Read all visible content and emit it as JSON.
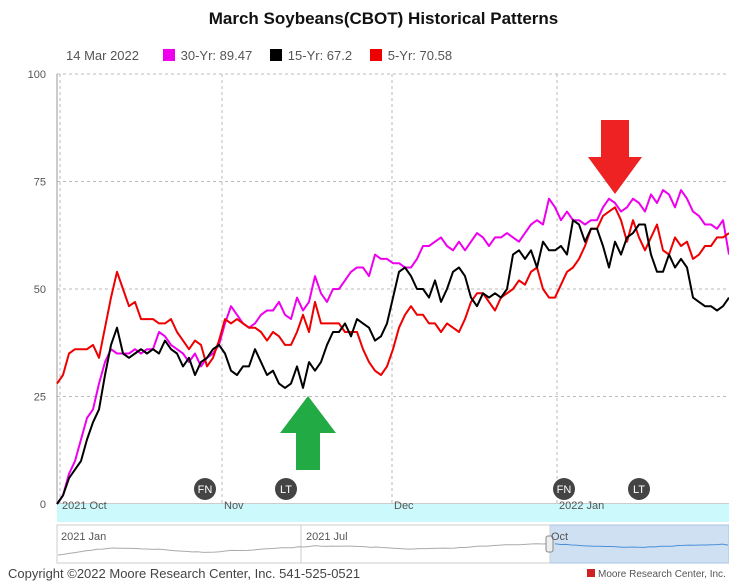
{
  "title": "March Soybeans(CBOT) Historical Patterns",
  "legend": {
    "date": "14 Mar 2022",
    "items": [
      {
        "label": "30-Yr: 89.47",
        "color": "#ee00ee"
      },
      {
        "label": "15-Yr: 67.2",
        "color": "#000000"
      },
      {
        "label": "5-Yr: 70.58",
        "color": "#ee0000"
      }
    ]
  },
  "copyright": "Copyright ©2022 Moore Research Center, Inc. 541-525-0521",
  "brand": "Moore Research Center, Inc.",
  "colors": {
    "thirty": "#ee00ee",
    "fifteen": "#000000",
    "five": "#ee0000",
    "up_arrow": "#22aa44",
    "down_arrow": "#ee2222",
    "navigator": "#ccf9fb"
  },
  "chart_data": {
    "type": "line",
    "title": "March Soybeans(CBOT) Historical Patterns",
    "xlabel": "",
    "ylabel": "",
    "ylim": [
      0,
      100
    ],
    "yticks": [
      "0",
      "25",
      "50",
      "75",
      "100"
    ],
    "xticks": [
      "2021 Oct",
      "Nov",
      "Dec",
      "2022 Jan"
    ],
    "markers": [
      "FN",
      "LT",
      "FN",
      "LT"
    ],
    "navigator_labels": [
      "2021 Jan",
      "2021 Jul",
      "Oct"
    ],
    "grid": true,
    "series": [
      {
        "name": "30-Yr: 89.47",
        "values": [
          0,
          2,
          7,
          10,
          15,
          20,
          22,
          28,
          33,
          36,
          35,
          35,
          35,
          36,
          35,
          36,
          36,
          40,
          39,
          37,
          36,
          35,
          33,
          35,
          32,
          34,
          35,
          37,
          42,
          46,
          44,
          42,
          41,
          42,
          44,
          45,
          45,
          47,
          44,
          43,
          48,
          45,
          47,
          53,
          49,
          47,
          50,
          50,
          52,
          54,
          55,
          55,
          53,
          58,
          57,
          57,
          56,
          56,
          55,
          55,
          57,
          60,
          60,
          61,
          62,
          60,
          59,
          61,
          59,
          61,
          63,
          62,
          60,
          62,
          62,
          63,
          62,
          61,
          63,
          65,
          66,
          65,
          71,
          69,
          66,
          68,
          66,
          66,
          65,
          66,
          66,
          69,
          71,
          70,
          68,
          69,
          71,
          70,
          68,
          72,
          70,
          73,
          72,
          69,
          73,
          71,
          68,
          67,
          65,
          65,
          64,
          66,
          58
        ]
      },
      {
        "name": "15-Yr: 67.2",
        "values": [
          0,
          2,
          6,
          8,
          10,
          15,
          19,
          22,
          30,
          37,
          41,
          35,
          34,
          35,
          36,
          35,
          36,
          35,
          38,
          36,
          35,
          32,
          34,
          30,
          33,
          34,
          36,
          37,
          35,
          31,
          30,
          32,
          32,
          36,
          33,
          30,
          31,
          28,
          27,
          28,
          32,
          27,
          33,
          31,
          33,
          37,
          40,
          40,
          42,
          39,
          43,
          42,
          41,
          38,
          39,
          42,
          48,
          54,
          55,
          53,
          50,
          50,
          48,
          52,
          47,
          50,
          54,
          55,
          53,
          48,
          46,
          49,
          48,
          49,
          48,
          50,
          58,
          59,
          57,
          59,
          55,
          61,
          59,
          59,
          60,
          58,
          66,
          65,
          61,
          64,
          64,
          60,
          55,
          61,
          58,
          62,
          63,
          65,
          65,
          58,
          54,
          54,
          58,
          55,
          57,
          55,
          48,
          47,
          46,
          46,
          45,
          46,
          48
        ]
      },
      {
        "name": "5-Yr: 70.58",
        "values": [
          28,
          30,
          35,
          36,
          36,
          36,
          37,
          34,
          41,
          48,
          54,
          50,
          46,
          47,
          43,
          43,
          43,
          42,
          42,
          43,
          40,
          38,
          36,
          38,
          37,
          32,
          34,
          38,
          43,
          42,
          43,
          42,
          41,
          41,
          40,
          38,
          40,
          39,
          37,
          37,
          40,
          44,
          40,
          47,
          42,
          42,
          42,
          42,
          40,
          40,
          40,
          36,
          33,
          31,
          30,
          32,
          36,
          41,
          44,
          46,
          44,
          44,
          42,
          42,
          40,
          42,
          41,
          40,
          43,
          47,
          49,
          49,
          47,
          45,
          48,
          49,
          50,
          52,
          51,
          54,
          55,
          50,
          48,
          48,
          51,
          54,
          55,
          57,
          60,
          64,
          64,
          67,
          68,
          69,
          66,
          61,
          66,
          62,
          59,
          62,
          65,
          59,
          58,
          62,
          60,
          61,
          57,
          58,
          60,
          60,
          62,
          62,
          63
        ]
      }
    ]
  }
}
